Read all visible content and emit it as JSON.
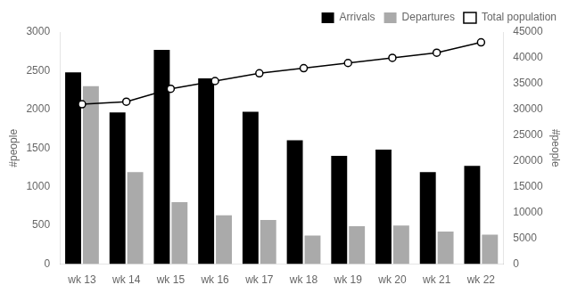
{
  "chart_data": {
    "type": "bar",
    "categories": [
      "wk 13",
      "wk 14",
      "wk 15",
      "wk 16",
      "wk 17",
      "wk 18",
      "wk 19",
      "wk 20",
      "wk 21",
      "wk 22"
    ],
    "series": [
      {
        "name": "Arrivals",
        "color": "#000000",
        "values": [
          2480,
          1960,
          2770,
          2400,
          1970,
          1600,
          1400,
          1480,
          1190,
          1270
        ]
      },
      {
        "name": "Departures",
        "color": "#aaaaaa",
        "values": [
          2300,
          1190,
          800,
          630,
          570,
          370,
          490,
          500,
          420,
          380
        ]
      },
      {
        "name": "Total population",
        "type": "line",
        "axis": "y2",
        "color": "#000000",
        "marker": "circle",
        "values": [
          31000,
          31500,
          34000,
          35500,
          37000,
          38000,
          39000,
          40000,
          41000,
          43000
        ]
      }
    ],
    "ylabel": "#people",
    "y2label": "#people",
    "ylim": [
      0,
      3000
    ],
    "yticks": [
      0,
      500,
      1000,
      1500,
      2000,
      2500,
      3000
    ],
    "y2lim": [
      0,
      45000
    ],
    "y2ticks": [
      0,
      5000,
      10000,
      15000,
      20000,
      25000,
      30000,
      35000,
      40000,
      45000
    ],
    "grid": false,
    "legend": "upper right"
  }
}
